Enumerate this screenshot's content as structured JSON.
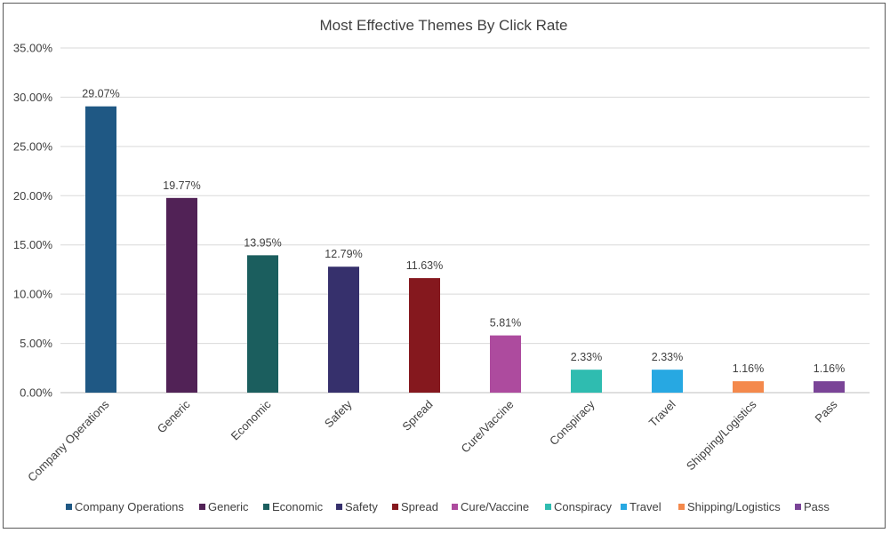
{
  "chart_data": {
    "type": "bar",
    "title": "Most Effective Themes By Click Rate",
    "xlabel": "",
    "ylabel": "",
    "ylim": [
      0,
      35
    ],
    "yticks": [
      "0.00%",
      "5.00%",
      "10.00%",
      "15.00%",
      "20.00%",
      "25.00%",
      "30.00%",
      "35.00%"
    ],
    "grid": true,
    "legend_position": "bottom",
    "categories": [
      "Company Operations",
      "Generic",
      "Economic",
      "Safety",
      "Spread",
      "Cure/Vaccine",
      "Conspiracy",
      "Travel",
      "Shipping/Logistics",
      "Pass"
    ],
    "values": [
      29.07,
      19.77,
      13.95,
      12.79,
      11.63,
      5.81,
      2.33,
      2.33,
      1.16,
      1.16
    ],
    "data_labels": [
      "29.07%",
      "19.77%",
      "13.95%",
      "12.79%",
      "11.63%",
      "5.81%",
      "2.33%",
      "2.33%",
      "1.16%",
      "1.16%"
    ],
    "colors": [
      "#1f5884",
      "#512256",
      "#1b5e5e",
      "#36306c",
      "#85181e",
      "#ad4b9e",
      "#2fbcb0",
      "#27a8e2",
      "#f4894c",
      "#7a4497"
    ]
  }
}
